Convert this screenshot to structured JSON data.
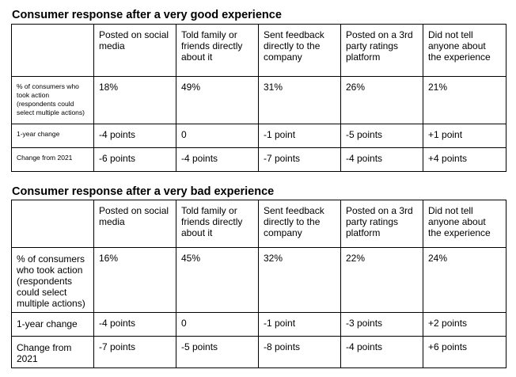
{
  "sections": [
    {
      "title": "Consumer response after a very good experience",
      "columns": [
        "",
        "Posted on social media",
        "Told family or friends directly about it",
        "Sent feedback directly to the company",
        "Posted on a 3rd party ratings platform",
        "Did not tell anyone about the experience"
      ],
      "rows": [
        {
          "label": "% of consumers who took action (respondents could select multiple actions)",
          "values": [
            "18%",
            "49%",
            "31%",
            "26%",
            "21%"
          ]
        },
        {
          "label": "1-year change",
          "values": [
            "-4 points",
            "0",
            "-1 point",
            "-5 points",
            "+1 point"
          ]
        },
        {
          "label": "Change from 2021",
          "values": [
            "-6 points",
            "-4 points",
            "-7 points",
            "-4 points",
            "+4 points"
          ]
        }
      ]
    },
    {
      "title": "Consumer response after a very bad experience",
      "columns": [
        "",
        "Posted on social media",
        "Told family or friends directly about it",
        "Sent feedback directly to the company",
        "Posted on a 3rd party ratings platform",
        "Did not tell anyone about the experience"
      ],
      "rows": [
        {
          "label": "% of consumers who took action (respondents could select multiple actions)",
          "values": [
            "16%",
            "45%",
            "32%",
            "22%",
            "24%"
          ]
        },
        {
          "label": "1-year change",
          "values": [
            "-4 points",
            "0",
            "-1 point",
            "-3 points",
            "+2 points"
          ]
        },
        {
          "label": "Change from 2021",
          "values": [
            "-7 points",
            "-5 points",
            "-8 points",
            "-4 points",
            "+6 points"
          ]
        }
      ]
    }
  ]
}
